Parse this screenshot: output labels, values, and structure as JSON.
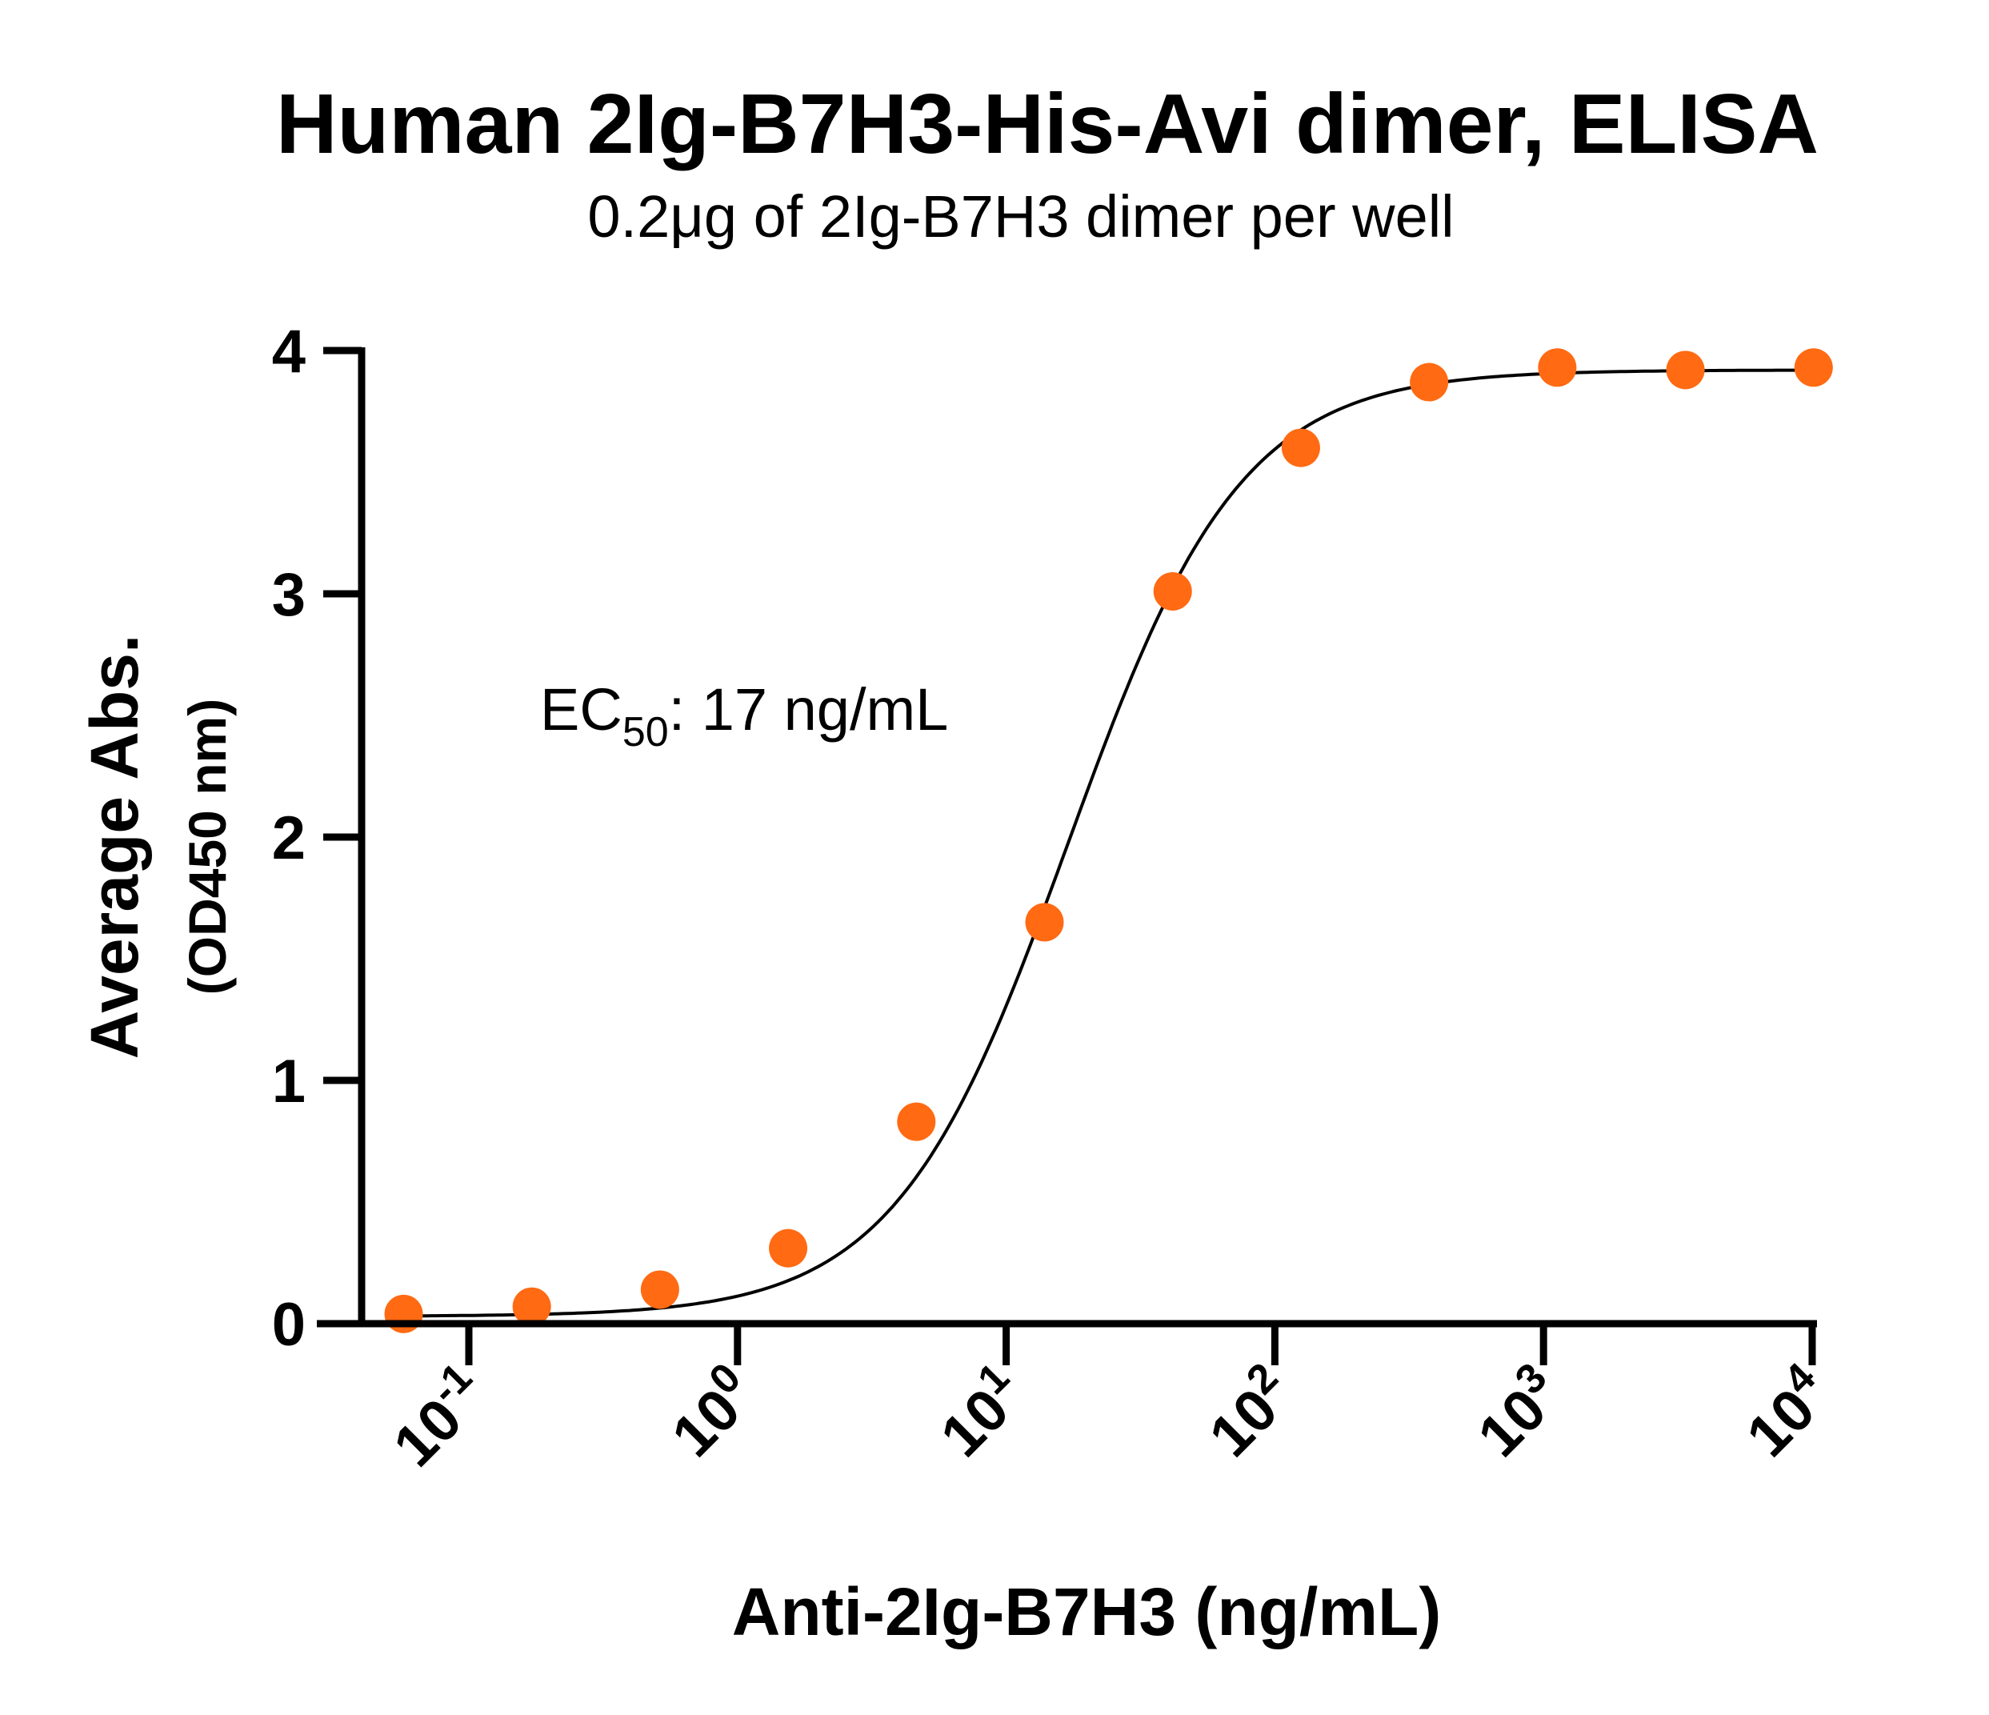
{
  "chart_data": {
    "type": "scatter",
    "title": "Human 2Ig-B7H3-His-Avi dimer, ELISA",
    "subtitle": "0.2μg of 2Ig-B7H3 dimer per well",
    "xlabel": "Anti-2Ig-B7H3 (ng/mL)",
    "ylabel": "Average Abs.",
    "ylabel_sub": "(OD450 nm)",
    "x_scale": "log10",
    "xlim": [
      0.05,
      10000
    ],
    "ylim": [
      0,
      4
    ],
    "x_ticks": [
      {
        "value": 0.1,
        "base": "10",
        "exp": "-1"
      },
      {
        "value": 1,
        "base": "10",
        "exp": "0"
      },
      {
        "value": 10,
        "base": "10",
        "exp": "1"
      },
      {
        "value": 100,
        "base": "10",
        "exp": "2"
      },
      {
        "value": 1000,
        "base": "10",
        "exp": "3"
      },
      {
        "value": 10000,
        "base": "10",
        "exp": "4"
      }
    ],
    "y_ticks": [
      0,
      1,
      2,
      3,
      4
    ],
    "grid": false,
    "colors": {
      "points": "#FF6A13",
      "curve": "#000000",
      "axes": "#000000"
    },
    "series": [
      {
        "x": [
          0.0572,
          0.1715,
          0.5144,
          1.543,
          4.63,
          13.89,
          41.67,
          125,
          375,
          1125,
          3375,
          10125
        ],
        "y": [
          0.04,
          0.07,
          0.14,
          0.31,
          0.83,
          1.65,
          3.01,
          3.6,
          3.87,
          3.93,
          3.92,
          3.93
        ]
      }
    ],
    "fit": {
      "model": "4PL",
      "bottom": 0.03,
      "top": 3.92,
      "ec50": 17,
      "hill": 1.35
    },
    "annotation": {
      "prefix": "EC",
      "subscript": "50",
      "suffix": ": 17 ng/mL"
    }
  }
}
